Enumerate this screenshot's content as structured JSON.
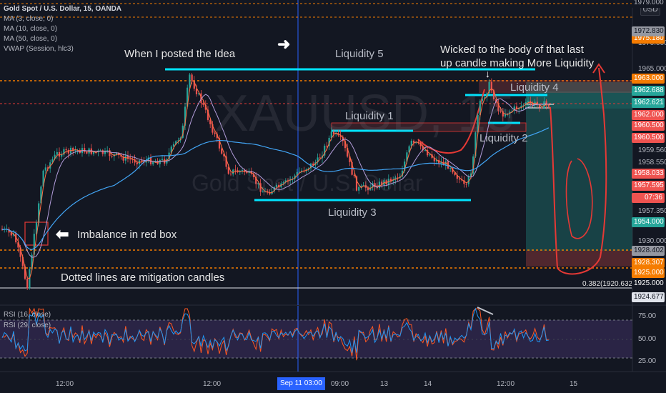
{
  "legend": {
    "symbol": "Gold Spot / U.S. Dollar, 15, OANDA",
    "studies": [
      "MA (3, close, 0)",
      "MA (10, close, 0)",
      "MA (50, close, 0)",
      "VWAP (Session, hlc3)"
    ]
  },
  "watermark": {
    "ticker": "XAUUSD, 15",
    "name": "Gold Spot / U.S. Dollar"
  },
  "currency_button": "USD",
  "annotations": {
    "posted": "When I posted the Idea",
    "liquidity5": "Liquidity 5",
    "wicked_line1": "Wicked to the body of that last",
    "wicked_line2": "up candle making More Liquidity",
    "liquidity4": "Liquidity 4",
    "liquidity1": "Liquidity 1",
    "liquidity2": "Liquidity 2",
    "liquidity3": "Liquidity 3",
    "imbalance": "Imbalance in red box",
    "dotted": "Dotted lines are mitigation candles",
    "fib_label": "0.382(1920.632)"
  },
  "price_axis": {
    "ticks": [
      "1970.000",
      "1965.000",
      "1959.560",
      "1958.550",
      "1957.350",
      "1930.000"
    ],
    "labels": [
      {
        "text": "1979.000",
        "bg": "#131722",
        "fg": "#b2b5be"
      },
      {
        "text": "1975.180",
        "bg": "#f57c00",
        "fg": "#ffffff"
      },
      {
        "text": "1972.830",
        "bg": "#9598a1",
        "fg": "#131722"
      },
      {
        "text": "1963.000",
        "bg": "#f57c00",
        "fg": "#ffffff"
      },
      {
        "text": "1962.688",
        "bg": "#26a69a",
        "fg": "#ffffff"
      },
      {
        "text": "1962.621",
        "bg": "#26a69a",
        "fg": "#ffffff"
      },
      {
        "text": "1962.000",
        "bg": "#ef5350",
        "fg": "#ffffff"
      },
      {
        "text": "1960.500",
        "bg": "#ef5350",
        "fg": "#ffffff"
      },
      {
        "text": "1960.500",
        "bg": "#ef5350",
        "fg": "#ffffff"
      },
      {
        "text": "1958.033",
        "bg": "#ef5350",
        "fg": "#ffffff"
      },
      {
        "text": "1957.595",
        "bg": "#ef5350",
        "fg": "#ffffff"
      },
      {
        "text": "07:36",
        "bg": "#ef5350",
        "fg": "#ffffff"
      },
      {
        "text": "1954.000",
        "bg": "#26a69a",
        "fg": "#ffffff"
      },
      {
        "text": "1928.402",
        "bg": "#9598a1",
        "fg": "#131722"
      },
      {
        "text": "1928.307",
        "bg": "#f57c00",
        "fg": "#ffffff"
      },
      {
        "text": "1925.000",
        "bg": "#f57c00",
        "fg": "#ffffff"
      },
      {
        "text": "1925.000",
        "bg": "#131722",
        "fg": "#ffffff"
      },
      {
        "text": "1924.677",
        "bg": "#e0e3eb",
        "fg": "#131722"
      }
    ]
  },
  "rsi": {
    "legend1": "RSI (16, close)",
    "legend2": "RSI (29, close)",
    "ticks": [
      "75.00",
      "50.00",
      "25.00"
    ]
  },
  "time_axis": {
    "ticks": [
      "12:00",
      "12:00",
      "09:00",
      "13",
      "14",
      "12:00",
      "15"
    ],
    "highlight": "Sep 11   03:00"
  },
  "colors": {
    "bg": "#131722",
    "cyan": "#00e5ff",
    "orange": "#f57c00",
    "red": "#e53935",
    "up": "#26a69a",
    "down": "#ef5350"
  }
}
